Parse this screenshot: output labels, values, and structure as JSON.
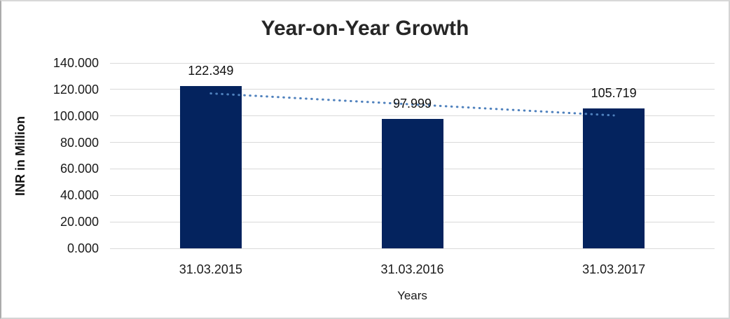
{
  "chart_data": {
    "type": "bar",
    "title": "Year-on-Year Growth",
    "categories": [
      "31.03.2015",
      "31.03.2016",
      "31.03.2017"
    ],
    "values": [
      122.349,
      97.999,
      105.719
    ],
    "data_labels": [
      "122.349",
      "97.999",
      "105.719"
    ],
    "series": [
      {
        "name": "INR in Million",
        "values": [
          122.349,
          97.999,
          105.719
        ]
      }
    ],
    "xlabel": "Years",
    "ylabel": "INR in Million",
    "ylim": [
      0,
      140
    ],
    "ytick_step": 20,
    "ytick_labels": [
      "0.000",
      "20.000",
      "40.000",
      "60.000",
      "80.000",
      "100.000",
      "120.000",
      "140.000"
    ],
    "grid": true,
    "legend": false,
    "trendline": {
      "type": "linear",
      "style": "dotted",
      "start_value": 117.0,
      "end_value": 100.4
    },
    "colors": {
      "bar": "#04235e",
      "trendline": "#4f81bd",
      "gridline": "#d9d9d9",
      "title_text": "#262626",
      "tick_text": "#1a1a1a"
    }
  }
}
